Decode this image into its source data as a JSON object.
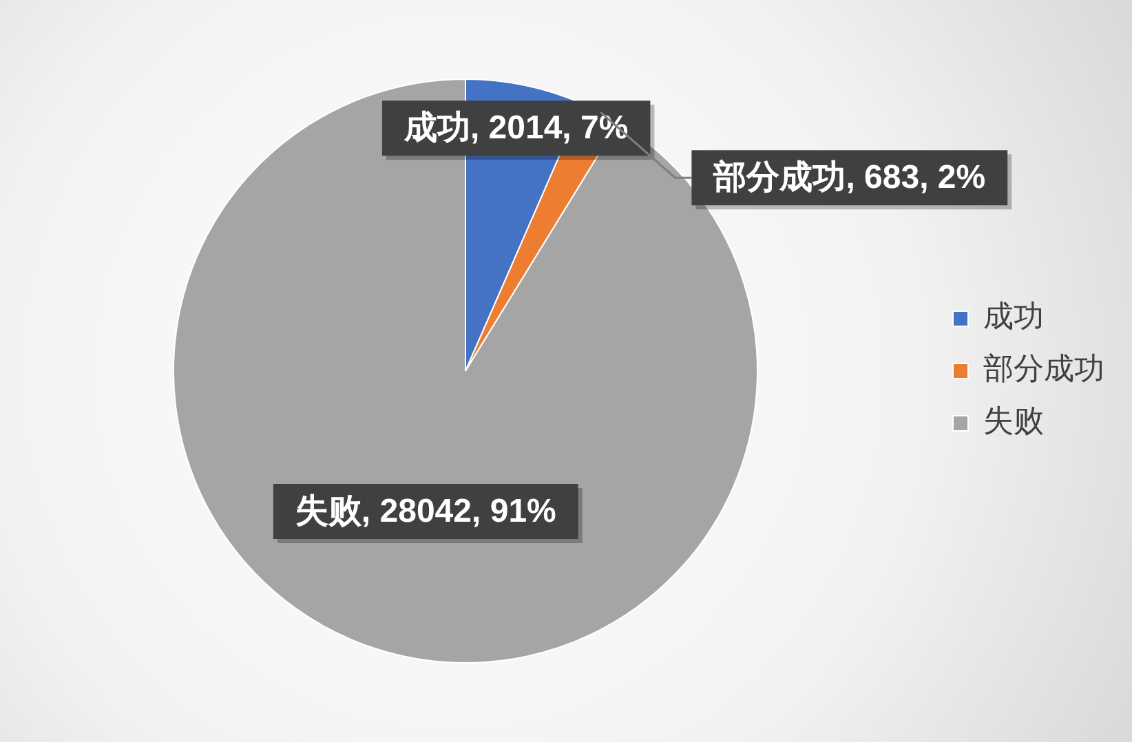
{
  "chart_data": {
    "type": "pie",
    "categories": [
      "成功",
      "部分成功",
      "失败"
    ],
    "values": [
      2014,
      683,
      28042
    ],
    "colors": [
      "#4472c4",
      "#ed7d31",
      "#a5a5a5"
    ],
    "value_labels": [
      "成功, 2014, 7%",
      "部分成功, 683, 2%",
      "失败, 28042, 91%"
    ],
    "legend": "right"
  }
}
